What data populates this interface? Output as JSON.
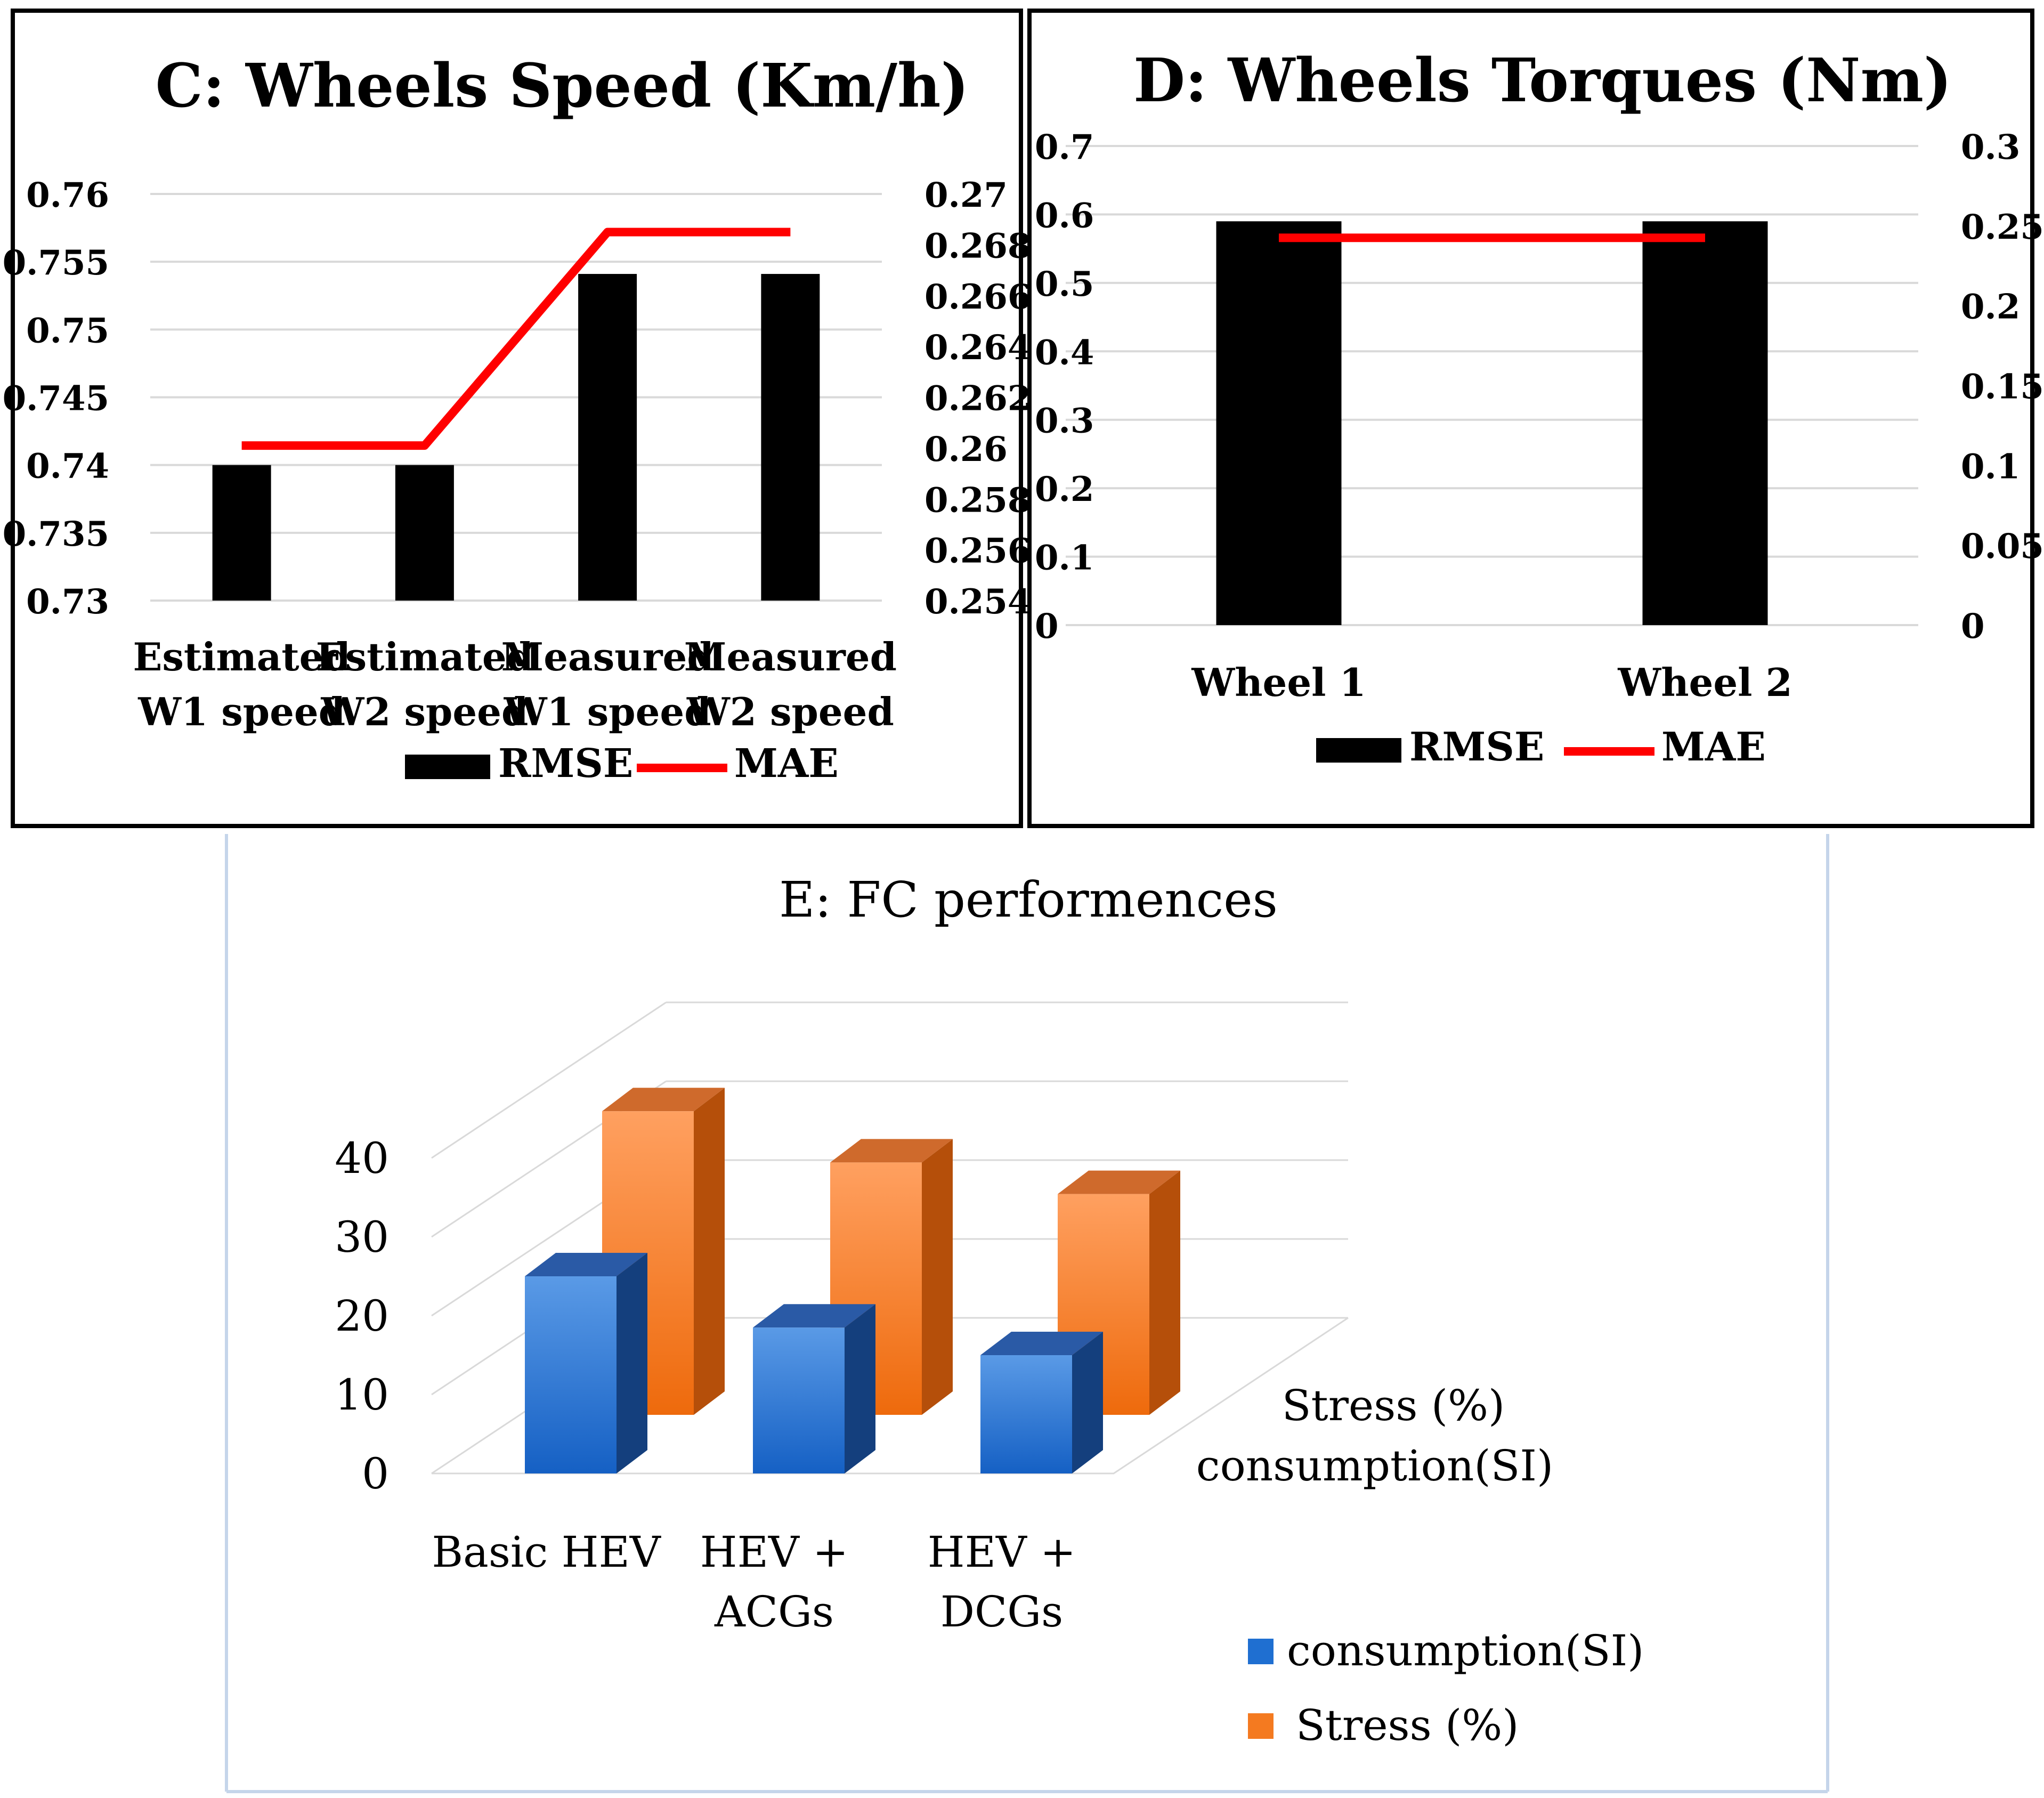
{
  "colors": {
    "bar_black": "#000000",
    "mae_red": "#ff0000",
    "grid": "#d9d9d9",
    "consumption_blue": "#1f6fd1",
    "stress_orange": "#f47a20",
    "panel_border": "#c5d5ea"
  },
  "chart_data": [
    {
      "id": "C",
      "type": "bar+line",
      "title": "C: Wheels Speed (Km/h)",
      "categories": [
        [
          "Estimated",
          "W1 speed"
        ],
        [
          "Estimated",
          "W2 speed"
        ],
        [
          "Measured",
          "W1 speed"
        ],
        [
          "Measured",
          "W2 speed"
        ]
      ],
      "series": [
        {
          "name": "RMSE",
          "kind": "bar",
          "axis": "left",
          "values": [
            0.74,
            0.74,
            0.7541,
            0.7541
          ]
        },
        {
          "name": "MAE",
          "kind": "line",
          "axis": "right",
          "values": [
            0.2601,
            0.2601,
            0.2685,
            0.2685
          ]
        }
      ],
      "left_axis": {
        "range": [
          0.73,
          0.76
        ],
        "ticks": [
          "0.76",
          "0.755",
          "0.75",
          "0.745",
          "0.74",
          "0.735",
          "0.73"
        ]
      },
      "right_axis": {
        "range": [
          0.254,
          0.27
        ],
        "ticks": [
          "0.27",
          "0.268",
          "0.266",
          "0.264",
          "0.262",
          "0.26",
          "0.258",
          "0.256",
          "0.254"
        ]
      },
      "legend": [
        "RMSE",
        "MAE"
      ],
      "legend_position": "bottom"
    },
    {
      "id": "D",
      "type": "bar+line",
      "title": "D: Wheels Torques (Nm)",
      "categories": [
        [
          "Wheel 1"
        ],
        [
          "Wheel 2"
        ]
      ],
      "series": [
        {
          "name": "RMSE",
          "kind": "bar",
          "axis": "left",
          "values": [
            0.59,
            0.59
          ]
        },
        {
          "name": "MAE",
          "kind": "line",
          "axis": "right",
          "values": [
            0.2425,
            0.2425
          ]
        }
      ],
      "left_axis": {
        "range": [
          0,
          0.7
        ],
        "ticks": [
          "0.7",
          "0.6",
          "0.5",
          "0.4",
          "0.3",
          "0.2",
          "0.1",
          "0"
        ]
      },
      "right_axis": {
        "range": [
          0,
          0.3
        ],
        "ticks": [
          "0.3",
          "0.25",
          "0.2",
          "0.15",
          "0.1",
          "0.05",
          "0"
        ]
      },
      "legend": [
        "RMSE",
        "MAE"
      ],
      "legend_position": "bottom"
    },
    {
      "id": "E",
      "type": "bar3d",
      "title": "E: FC performences",
      "categories": [
        [
          "Basic HEV"
        ],
        [
          "HEV +",
          "ACGs"
        ],
        [
          "HEV +",
          "DCGs"
        ]
      ],
      "series": [
        {
          "name": "consumption(SI)",
          "values": [
            25,
            18.5,
            15
          ]
        },
        {
          "name": "Stress (%)",
          "values": [
            38.5,
            32,
            28
          ]
        }
      ],
      "y_axis": {
        "range": [
          0,
          40
        ],
        "ticks": [
          "40",
          "30",
          "20",
          "10",
          "0"
        ]
      },
      "depth_labels": [
        "Stress (%)",
        "consumption(SI)"
      ],
      "legend": [
        "consumption(SI)",
        "Stress (%)"
      ],
      "legend_position": "bottom-right"
    }
  ]
}
